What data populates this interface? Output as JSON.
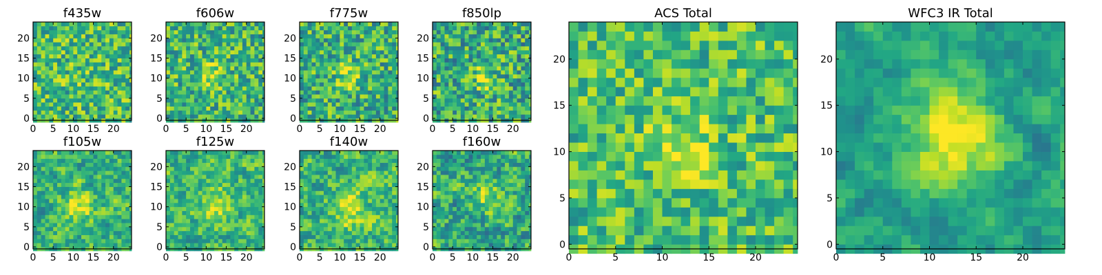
{
  "chart_data": [
    {
      "type": "heatmap",
      "title": "f435w",
      "grid_size": 25,
      "xticks": [
        "0",
        "5",
        "10",
        "15",
        "20"
      ],
      "yticks": [
        "0",
        "5",
        "10",
        "15",
        "20"
      ],
      "colormap": "viridis",
      "mean": 0.68,
      "spread": 0.3,
      "peak": [
        11,
        11
      ],
      "peak_strength": 0.05,
      "peak_width": 3.0,
      "smooth": 0,
      "seed": 435
    },
    {
      "type": "heatmap",
      "title": "f606w",
      "grid_size": 25,
      "xticks": [
        "0",
        "5",
        "10",
        "15",
        "20"
      ],
      "yticks": [
        "0",
        "5",
        "10",
        "15",
        "20"
      ],
      "colormap": "viridis",
      "mean": 0.66,
      "spread": 0.3,
      "peak": [
        11,
        11
      ],
      "peak_strength": 0.25,
      "peak_width": 2.2,
      "smooth": 0,
      "seed": 606
    },
    {
      "type": "heatmap",
      "title": "f775w",
      "grid_size": 25,
      "xticks": [
        "0",
        "5",
        "10",
        "15",
        "20"
      ],
      "yticks": [
        "0",
        "5",
        "10",
        "15",
        "20"
      ],
      "colormap": "viridis",
      "mean": 0.64,
      "spread": 0.3,
      "peak": [
        12,
        11
      ],
      "peak_strength": 0.28,
      "peak_width": 2.2,
      "smooth": 0,
      "seed": 775
    },
    {
      "type": "heatmap",
      "title": "f850lp",
      "grid_size": 25,
      "xticks": [
        "0",
        "5",
        "10",
        "15",
        "20"
      ],
      "yticks": [
        "0",
        "5",
        "10",
        "15",
        "20"
      ],
      "colormap": "viridis",
      "mean": 0.62,
      "spread": 0.32,
      "peak": [
        12,
        11
      ],
      "peak_strength": 0.2,
      "peak_width": 2.5,
      "smooth": 0,
      "seed": 850
    },
    {
      "type": "heatmap",
      "title": "f105w",
      "grid_size": 25,
      "xticks": [
        "0",
        "5",
        "10",
        "15",
        "20"
      ],
      "yticks": [
        "0",
        "5",
        "10",
        "15",
        "20"
      ],
      "colormap": "viridis",
      "mean": 0.64,
      "spread": 0.28,
      "peak": [
        11,
        11
      ],
      "peak_strength": 0.3,
      "peak_width": 2.8,
      "smooth": 1,
      "seed": 105
    },
    {
      "type": "heatmap",
      "title": "f125w",
      "grid_size": 25,
      "xticks": [
        "0",
        "5",
        "10",
        "15",
        "20"
      ],
      "yticks": [
        "0",
        "5",
        "10",
        "15",
        "20"
      ],
      "colormap": "viridis",
      "mean": 0.66,
      "spread": 0.26,
      "peak": [
        12,
        11
      ],
      "peak_strength": 0.28,
      "peak_width": 3.0,
      "smooth": 1,
      "seed": 125
    },
    {
      "type": "heatmap",
      "title": "f140w",
      "grid_size": 25,
      "xticks": [
        "0",
        "5",
        "10",
        "15",
        "20"
      ],
      "yticks": [
        "0",
        "5",
        "10",
        "15",
        "20"
      ],
      "colormap": "viridis",
      "mean": 0.66,
      "spread": 0.28,
      "peak": [
        12,
        10
      ],
      "peak_strength": 0.3,
      "peak_width": 3.0,
      "smooth": 1,
      "seed": 140
    },
    {
      "type": "heatmap",
      "title": "f160w",
      "grid_size": 25,
      "xticks": [
        "0",
        "5",
        "10",
        "15",
        "20"
      ],
      "yticks": [
        "0",
        "5",
        "10",
        "15",
        "20"
      ],
      "colormap": "viridis",
      "mean": 0.62,
      "spread": 0.3,
      "peak": [
        13,
        13
      ],
      "peak_strength": 0.3,
      "peak_width": 2.8,
      "smooth": 1,
      "seed": 160
    },
    {
      "type": "heatmap",
      "title": "ACS Total",
      "grid_size": 25,
      "xticks": [
        "0",
        "5",
        "10",
        "15",
        "20"
      ],
      "yticks": [
        "0",
        "5",
        "10",
        "15",
        "20"
      ],
      "colormap": "viridis",
      "mean": 0.7,
      "spread": 0.26,
      "peak": [
        12,
        11
      ],
      "peak_strength": 0.25,
      "peak_width": 2.5,
      "smooth": 0,
      "seed": 1000
    },
    {
      "type": "heatmap",
      "title": "WFC3 IR Total",
      "grid_size": 25,
      "xticks": [
        "0",
        "5",
        "10",
        "15",
        "20"
      ],
      "yticks": [
        "0",
        "5",
        "10",
        "15",
        "20"
      ],
      "colormap": "viridis",
      "mean": 0.56,
      "spread": 0.2,
      "peak": [
        12,
        12
      ],
      "peak_strength": 0.45,
      "peak_width": 3.5,
      "smooth": 2,
      "seed": 2000
    }
  ]
}
